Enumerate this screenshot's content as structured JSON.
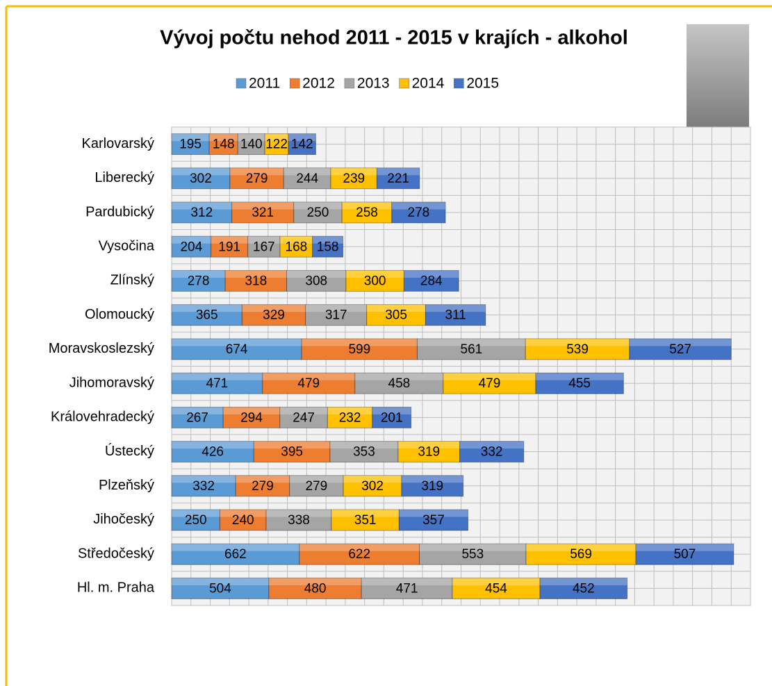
{
  "chart_data": {
    "type": "stacked_bar_horizontal",
    "title": "Vývoj počtu nehod 2011 - 2015 v krajích - alkohol",
    "categories": [
      "Karlovarský",
      "Liberecký",
      "Pardubický",
      "Vysočina",
      "Zlínský",
      "Olomoucký",
      "Moravskoslezský",
      "Jihomoravský",
      "Královehradecký",
      "Ústecký",
      "Plzeňský",
      "Jihočeský",
      "Středočeský",
      "Hl. m. Praha"
    ],
    "series": [
      {
        "name": "2011",
        "color": "#5b9bd5",
        "values": [
          195,
          302,
          312,
          204,
          278,
          365,
          674,
          471,
          267,
          426,
          332,
          250,
          662,
          504
        ]
      },
      {
        "name": "2012",
        "color": "#ed7d31",
        "values": [
          148,
          279,
          321,
          191,
          318,
          329,
          599,
          479,
          294,
          395,
          279,
          240,
          622,
          480
        ]
      },
      {
        "name": "2013",
        "color": "#a5a5a5",
        "values": [
          140,
          244,
          250,
          167,
          308,
          317,
          561,
          458,
          247,
          353,
          279,
          338,
          553,
          471
        ]
      },
      {
        "name": "2014",
        "color": "#ffc000",
        "values": [
          122,
          239,
          258,
          168,
          300,
          305,
          539,
          479,
          232,
          319,
          302,
          351,
          569,
          454
        ]
      },
      {
        "name": "2015",
        "color": "#4472c4",
        "values": [
          142,
          221,
          278,
          158,
          284,
          311,
          527,
          455,
          201,
          332,
          319,
          357,
          507,
          452
        ]
      }
    ],
    "xlim": [
      0,
      3000
    ],
    "xticks": [
      0,
      100,
      200,
      300,
      400,
      500,
      600,
      700,
      800,
      900,
      1000,
      1100,
      1200,
      1300,
      1400,
      1500,
      1600,
      1700,
      1800,
      1900,
      2000,
      2100,
      2200,
      2300,
      2400,
      2500,
      2600,
      2700,
      2800,
      2900,
      3000
    ],
    "grid": true,
    "legend": "top"
  }
}
